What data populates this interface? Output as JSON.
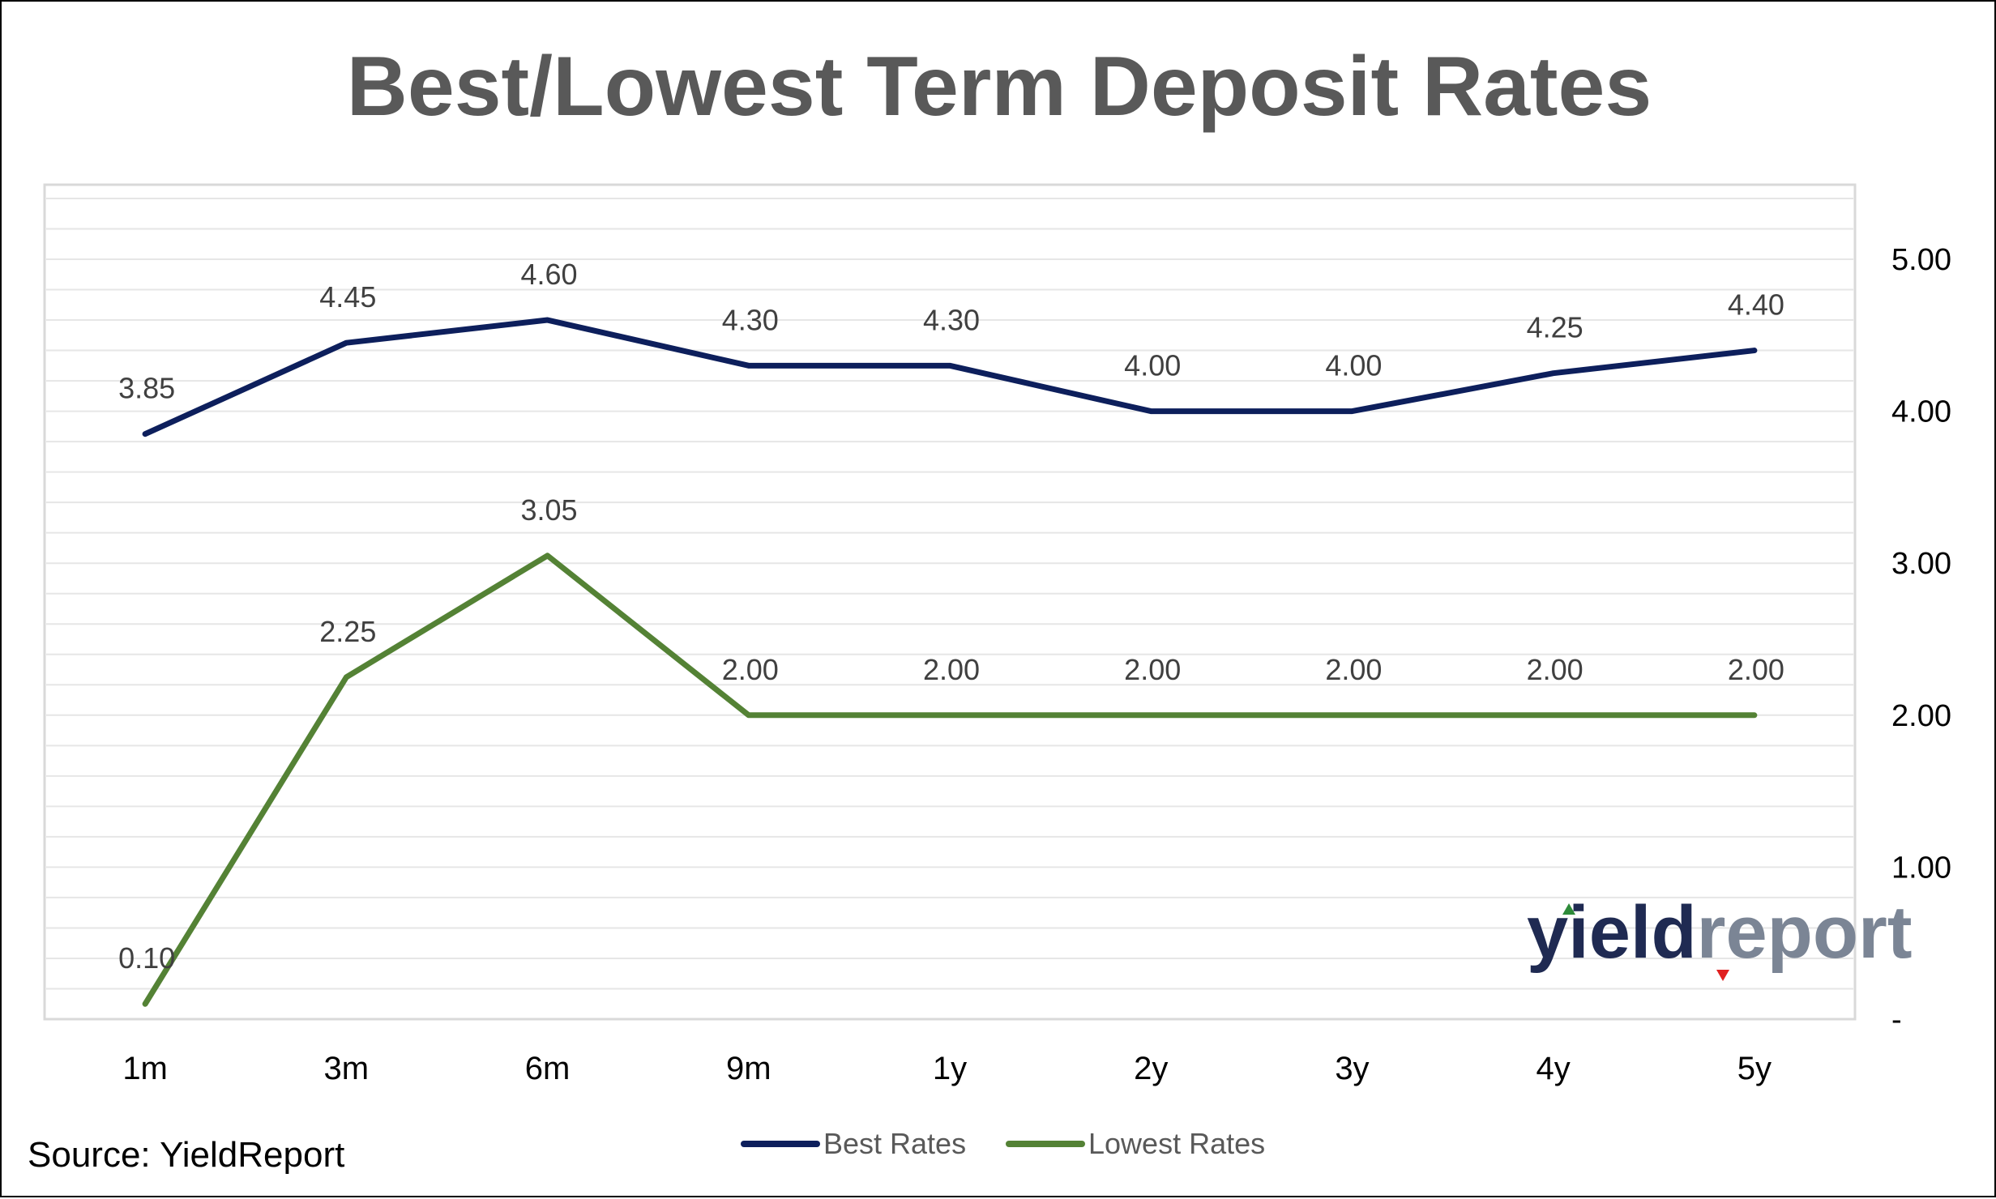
{
  "chart_data": {
    "type": "line",
    "title": "Best/Lowest Term Deposit Rates",
    "categories": [
      "1m",
      "3m",
      "6m",
      "9m",
      "1y",
      "2y",
      "3y",
      "4y",
      "5y"
    ],
    "series": [
      {
        "name": "Best Rates",
        "color": "#0d1f5c",
        "values": [
          3.85,
          4.45,
          4.6,
          4.3,
          4.3,
          4.0,
          4.0,
          4.25,
          4.4
        ],
        "labels": [
          "3.85",
          "4.45",
          "4.60",
          "4.30",
          "4.30",
          "4.00",
          "4.00",
          "4.25",
          "4.40"
        ]
      },
      {
        "name": "Lowest Rates",
        "color": "#548235",
        "values": [
          0.1,
          2.25,
          3.05,
          2.0,
          2.0,
          2.0,
          2.0,
          2.0,
          2.0
        ],
        "labels": [
          "0.10",
          "2.25",
          "3.05",
          "2.00",
          "2.00",
          "2.00",
          "2.00",
          "2.00",
          "2.00"
        ]
      }
    ],
    "yaxis": {
      "side": "right",
      "ylim": [
        0,
        5.5
      ],
      "ticks": [
        0,
        1,
        2,
        3,
        4,
        5
      ],
      "tick_labels": [
        "-",
        "1.00",
        "2.00",
        "3.00",
        "4.00",
        "5.00"
      ]
    },
    "grid": true,
    "grid_color": "#e6e6e6",
    "minor_grid_step": 0.2,
    "legend": "bottom",
    "source": "Source: YieldReport",
    "logo": {
      "part1": "yield",
      "part2": "report"
    }
  }
}
